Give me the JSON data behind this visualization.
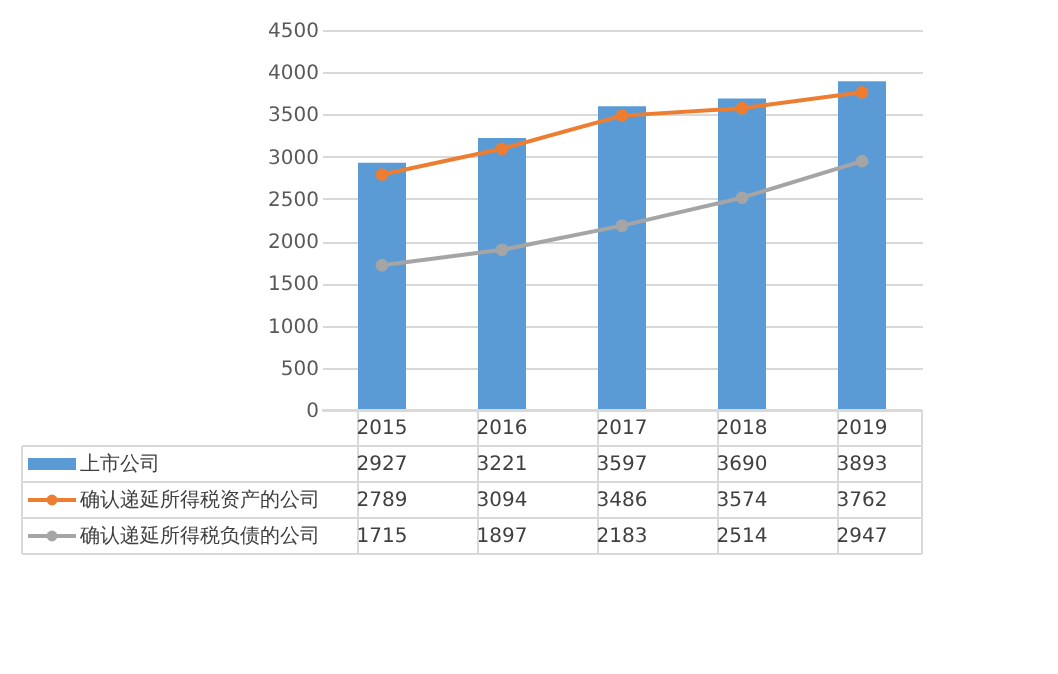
{
  "chart_data": {
    "type": "bar",
    "categories": [
      "2015",
      "2016",
      "2017",
      "2018",
      "2019"
    ],
    "series": [
      {
        "name": "上市公司",
        "color": "#5b9bd5",
        "values": [
          2927,
          3221,
          3597,
          3690,
          3893
        ]
      },
      {
        "name": "确认递延所得税资产的公司",
        "color": "#ed7d31",
        "type": "line",
        "values": [
          2789,
          3094,
          3486,
          3574,
          3762
        ]
      },
      {
        "name": "确认递延所得税负债的公司",
        "color": "#a5a5a5",
        "type": "line",
        "values": [
          1715,
          1897,
          2183,
          2514,
          2947
        ]
      }
    ],
    "ylim": [
      0,
      4500
    ],
    "yticks": [
      0,
      500,
      1000,
      1500,
      2000,
      2500,
      3000,
      3500,
      4000,
      4500
    ],
    "grid": "y",
    "legend": "bottom",
    "data_labels": true,
    "marker": "circle",
    "line_style": "solid"
  }
}
